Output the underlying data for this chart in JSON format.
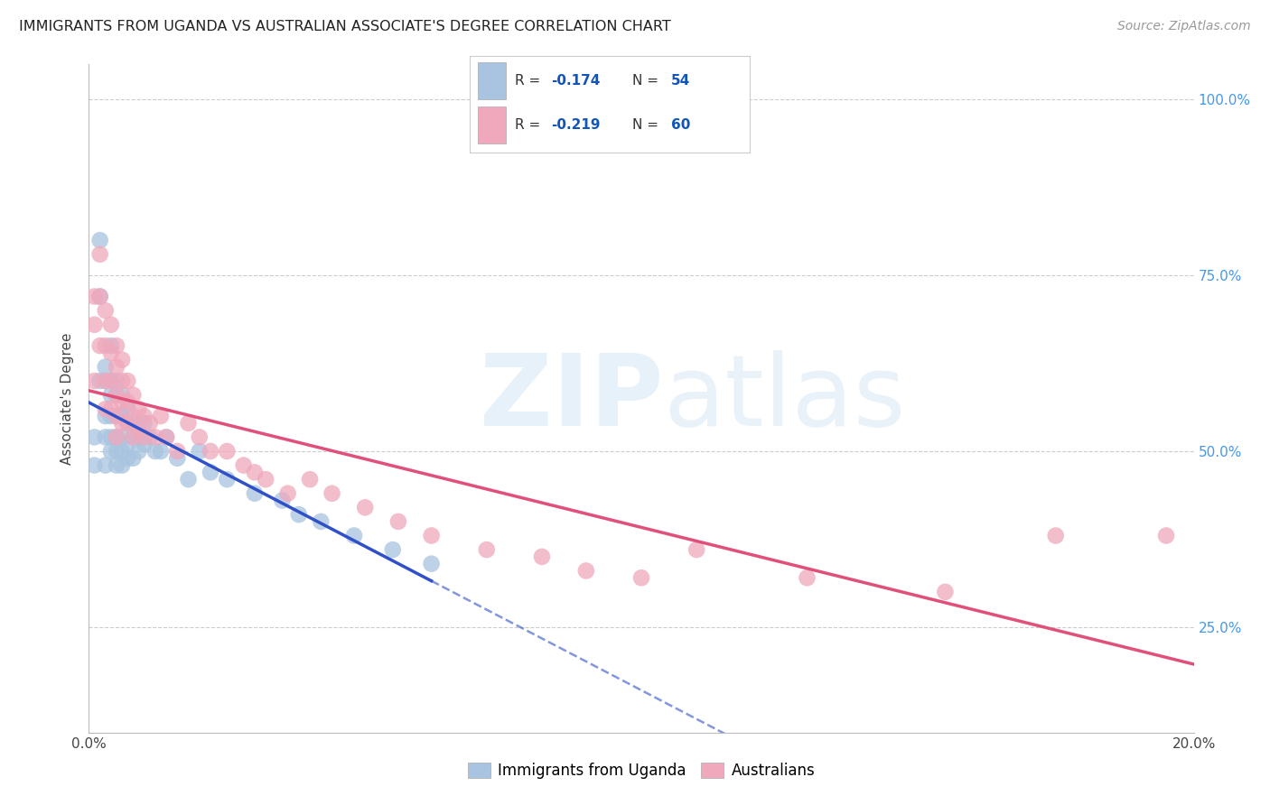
{
  "title": "IMMIGRANTS FROM UGANDA VS AUSTRALIAN ASSOCIATE'S DEGREE CORRELATION CHART",
  "source": "Source: ZipAtlas.com",
  "ylabel": "Associate's Degree",
  "y_tick_labels": [
    "25.0%",
    "50.0%",
    "75.0%",
    "100.0%"
  ],
  "y_tick_values": [
    0.25,
    0.5,
    0.75,
    1.0
  ],
  "x_tick_labels": [
    "0.0%",
    "",
    "",
    "",
    "",
    "20.0%"
  ],
  "x_tick_values": [
    0.0,
    0.04,
    0.08,
    0.12,
    0.16,
    0.2
  ],
  "xlim": [
    0.0,
    0.2
  ],
  "ylim": [
    0.1,
    1.05
  ],
  "blue_color": "#A8C4E0",
  "pink_color": "#F0A8BC",
  "blue_line_color": "#3050C8",
  "pink_line_color": "#E0507A",
  "right_tick_color": "#4499EE",
  "legend_R_color": "#1155BB",
  "legend_N_color": "#1155BB",
  "background_color": "#FFFFFF",
  "grid_color": "#CCCCCC",
  "blue_R": -0.174,
  "blue_N": 54,
  "pink_R": -0.219,
  "pink_N": 60,
  "blue_x": [
    0.001,
    0.001,
    0.002,
    0.002,
    0.002,
    0.003,
    0.003,
    0.003,
    0.003,
    0.003,
    0.004,
    0.004,
    0.004,
    0.004,
    0.004,
    0.004,
    0.005,
    0.005,
    0.005,
    0.005,
    0.005,
    0.005,
    0.006,
    0.006,
    0.006,
    0.006,
    0.006,
    0.007,
    0.007,
    0.007,
    0.007,
    0.008,
    0.008,
    0.008,
    0.009,
    0.009,
    0.01,
    0.01,
    0.011,
    0.012,
    0.013,
    0.014,
    0.016,
    0.018,
    0.02,
    0.022,
    0.025,
    0.03,
    0.035,
    0.038,
    0.042,
    0.048,
    0.055,
    0.062
  ],
  "blue_y": [
    0.52,
    0.48,
    0.8,
    0.72,
    0.6,
    0.62,
    0.6,
    0.55,
    0.52,
    0.48,
    0.65,
    0.6,
    0.58,
    0.55,
    0.52,
    0.5,
    0.6,
    0.58,
    0.55,
    0.52,
    0.5,
    0.48,
    0.58,
    0.55,
    0.52,
    0.5,
    0.48,
    0.56,
    0.54,
    0.51,
    0.49,
    0.54,
    0.52,
    0.49,
    0.52,
    0.5,
    0.54,
    0.51,
    0.52,
    0.5,
    0.5,
    0.52,
    0.49,
    0.46,
    0.5,
    0.47,
    0.46,
    0.44,
    0.43,
    0.41,
    0.4,
    0.38,
    0.36,
    0.34
  ],
  "pink_x": [
    0.001,
    0.001,
    0.001,
    0.002,
    0.002,
    0.002,
    0.003,
    0.003,
    0.003,
    0.003,
    0.004,
    0.004,
    0.004,
    0.004,
    0.005,
    0.005,
    0.005,
    0.005,
    0.005,
    0.006,
    0.006,
    0.006,
    0.006,
    0.007,
    0.007,
    0.007,
    0.008,
    0.008,
    0.008,
    0.009,
    0.009,
    0.01,
    0.01,
    0.011,
    0.012,
    0.013,
    0.014,
    0.016,
    0.018,
    0.02,
    0.022,
    0.025,
    0.028,
    0.03,
    0.032,
    0.036,
    0.04,
    0.044,
    0.05,
    0.056,
    0.062,
    0.072,
    0.082,
    0.09,
    0.1,
    0.11,
    0.13,
    0.155,
    0.175,
    0.195
  ],
  "pink_y": [
    0.72,
    0.68,
    0.6,
    0.78,
    0.72,
    0.65,
    0.7,
    0.65,
    0.6,
    0.56,
    0.68,
    0.64,
    0.6,
    0.56,
    0.65,
    0.62,
    0.58,
    0.55,
    0.52,
    0.63,
    0.6,
    0.57,
    0.54,
    0.6,
    0.57,
    0.54,
    0.58,
    0.55,
    0.52,
    0.56,
    0.53,
    0.55,
    0.52,
    0.54,
    0.52,
    0.55,
    0.52,
    0.5,
    0.54,
    0.52,
    0.5,
    0.5,
    0.48,
    0.47,
    0.46,
    0.44,
    0.46,
    0.44,
    0.42,
    0.4,
    0.38,
    0.36,
    0.35,
    0.33,
    0.32,
    0.36,
    0.32,
    0.3,
    0.38,
    0.38
  ]
}
